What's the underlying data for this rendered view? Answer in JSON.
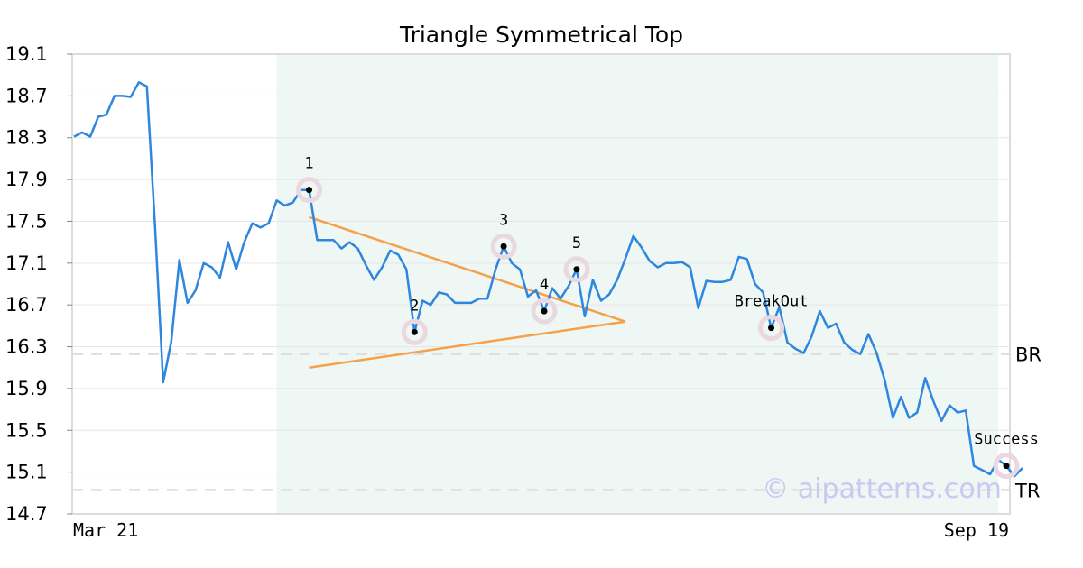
{
  "chart_data": {
    "type": "line",
    "title": "Triangle Symmetrical Top",
    "ylim": [
      14.7,
      19.1
    ],
    "yticks": [
      "19.1",
      "18.7",
      "18.3",
      "17.9",
      "17.5",
      "17.1",
      "16.7",
      "16.3",
      "15.9",
      "15.5",
      "15.1",
      "14.7"
    ],
    "xticks": [
      "Mar 21",
      "Sep 19"
    ],
    "grid": true,
    "colors": {
      "line": "#2e86de",
      "triangle": "#f7a04a",
      "shade": "#eef7f3",
      "marker_ring": "#ead7e0",
      "hline": "#dddddd"
    },
    "series": [
      {
        "values": [
          18.31,
          18.35,
          18.31,
          18.5,
          18.52,
          18.7,
          18.7,
          18.69,
          18.83,
          18.79,
          17.45,
          15.96,
          16.35,
          17.13,
          16.72,
          16.84,
          17.1,
          17.06,
          16.96,
          17.3,
          17.04,
          17.3,
          17.48,
          17.44,
          17.48,
          17.7,
          17.65,
          17.68,
          17.8,
          17.8,
          17.32,
          17.32,
          17.32,
          17.24,
          17.3,
          17.24,
          17.08,
          16.94,
          17.06,
          17.22,
          17.18,
          17.04,
          16.44,
          16.74,
          16.7,
          16.82,
          16.8,
          16.72,
          16.72,
          16.72,
          16.76,
          16.76,
          17.04,
          17.26,
          17.1,
          17.04,
          16.78,
          16.84,
          16.64,
          16.86,
          16.76,
          16.88,
          17.04,
          16.59,
          16.94,
          16.74,
          16.8,
          16.94,
          17.14,
          17.36,
          17.25,
          17.12,
          17.06,
          17.1,
          17.1,
          17.11,
          17.06,
          16.67,
          16.93,
          16.92,
          16.92,
          16.94,
          17.16,
          17.14,
          16.9,
          16.82,
          16.48,
          16.68,
          16.34,
          16.28,
          16.24,
          16.4,
          16.64,
          16.48,
          16.52,
          16.34,
          16.27,
          16.23,
          16.42,
          16.24,
          15.98,
          15.62,
          15.82,
          15.62,
          15.67,
          16.0,
          15.78,
          15.59,
          15.74,
          15.67,
          15.69,
          15.16,
          15.12,
          15.08,
          15.22,
          15.16,
          15.06,
          15.14
        ]
      }
    ],
    "pattern_points": [
      {
        "label": "1",
        "index": 29,
        "y": 17.8
      },
      {
        "label": "2",
        "index": 42,
        "y": 16.44
      },
      {
        "label": "3",
        "index": 53,
        "y": 17.26
      },
      {
        "label": "4",
        "index": 58,
        "y": 16.64
      },
      {
        "label": "5",
        "index": 62,
        "y": 17.04
      },
      {
        "label": "BreakOut",
        "index": 86,
        "y": 16.48
      },
      {
        "label": "Success",
        "index": 115,
        "y": 15.16
      }
    ],
    "triangle": {
      "upper": [
        [
          29,
          17.54
        ],
        [
          68,
          16.54
        ]
      ],
      "lower": [
        [
          29,
          16.1
        ],
        [
          68,
          16.54
        ]
      ]
    },
    "shaded_range": [
      25,
      114
    ],
    "hlines": [
      {
        "label": "BR",
        "y": 16.23
      },
      {
        "label": "TR",
        "y": 14.93
      }
    ],
    "watermark": "© aipatterns.com"
  }
}
